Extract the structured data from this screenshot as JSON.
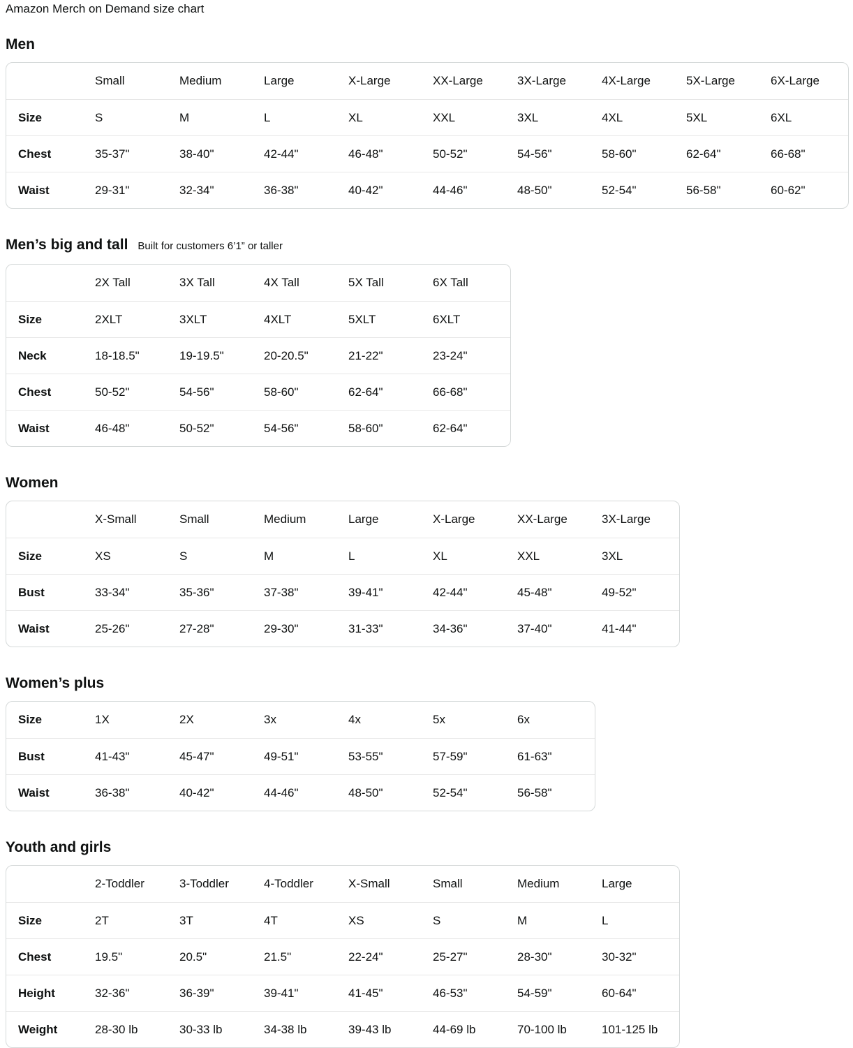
{
  "page_title": "Amazon Merch on Demand size chart",
  "colors": {
    "text": "#0f1111",
    "table_border": "#d5d9d9",
    "row_separator": "#e7e7e7",
    "background": "#ffffff"
  },
  "sections": [
    {
      "heading": "Men",
      "subtitle": "",
      "columns": [
        "Small",
        "Medium",
        "Large",
        "X-Large",
        "XX-Large",
        "3X-Large",
        "4X-Large",
        "5X-Large",
        "6X-Large"
      ],
      "rows": [
        {
          "label": "Size",
          "values": [
            "S",
            "M",
            "L",
            "XL",
            "XXL",
            "3XL",
            "4XL",
            "5XL",
            "6XL"
          ]
        },
        {
          "label": "Chest",
          "values": [
            "35-37\"",
            "38-40\"",
            "42-44\"",
            "46-48\"",
            "50-52\"",
            "54-56\"",
            "58-60\"",
            "62-64\"",
            "66-68\""
          ]
        },
        {
          "label": "Waist",
          "values": [
            "29-31\"",
            "32-34\"",
            "36-38\"",
            "40-42\"",
            "44-46\"",
            "48-50\"",
            "52-54\"",
            "56-58\"",
            "60-62\""
          ]
        }
      ]
    },
    {
      "heading": "Men’s big and tall",
      "subtitle": "Built for customers 6’1” or taller",
      "columns": [
        "2X Tall",
        "3X Tall",
        "4X Tall",
        "5X Tall",
        "6X Tall"
      ],
      "rows": [
        {
          "label": "Size",
          "values": [
            "2XLT",
            "3XLT",
            "4XLT",
            "5XLT",
            "6XLT"
          ]
        },
        {
          "label": "Neck",
          "values": [
            "18-18.5\"",
            "19-19.5\"",
            "20-20.5\"",
            "21-22\"",
            "23-24\""
          ]
        },
        {
          "label": "Chest",
          "values": [
            "50-52\"",
            "54-56\"",
            "58-60\"",
            "62-64\"",
            "66-68\""
          ]
        },
        {
          "label": "Waist",
          "values": [
            "46-48\"",
            "50-52\"",
            "54-56\"",
            "58-60\"",
            "62-64\""
          ]
        }
      ]
    },
    {
      "heading": "Women",
      "subtitle": "",
      "columns": [
        "X-Small",
        "Small",
        "Medium",
        "Large",
        "X-Large",
        "XX-Large",
        "3X-Large"
      ],
      "rows": [
        {
          "label": "Size",
          "values": [
            "XS",
            "S",
            "M",
            "L",
            "XL",
            "XXL",
            "3XL"
          ]
        },
        {
          "label": "Bust",
          "values": [
            "33-34\"",
            "35-36\"",
            "37-38\"",
            "39-41\"",
            "42-44\"",
            "45-48\"",
            "49-52\""
          ]
        },
        {
          "label": "Waist",
          "values": [
            "25-26\"",
            "27-28\"",
            "29-30\"",
            "31-33\"",
            "34-36\"",
            "37-40\"",
            "41-44\""
          ]
        }
      ]
    },
    {
      "heading": "Women’s plus",
      "subtitle": "",
      "columns": null,
      "rows": [
        {
          "label": "Size",
          "values": [
            "1X",
            "2X",
            "3x",
            "4x",
            "5x",
            "6x"
          ]
        },
        {
          "label": "Bust",
          "values": [
            "41-43\"",
            "45-47\"",
            "49-51\"",
            "53-55\"",
            "57-59\"",
            "61-63\""
          ]
        },
        {
          "label": "Waist",
          "values": [
            "36-38\"",
            "40-42\"",
            "44-46\"",
            "48-50\"",
            "52-54\"",
            "56-58\""
          ]
        }
      ]
    },
    {
      "heading": "Youth and girls",
      "subtitle": "",
      "columns": [
        "2-Toddler",
        "3-Toddler",
        "4-Toddler",
        "X-Small",
        "Small",
        "Medium",
        "Large"
      ],
      "rows": [
        {
          "label": "Size",
          "values": [
            "2T",
            "3T",
            "4T",
            "XS",
            "S",
            "M",
            "L"
          ]
        },
        {
          "label": "Chest",
          "values": [
            "19.5\"",
            "20.5\"",
            "21.5\"",
            "22-24\"",
            "25-27\"",
            "28-30\"",
            "30-32\""
          ]
        },
        {
          "label": "Height",
          "values": [
            "32-36\"",
            "36-39\"",
            "39-41\"",
            "41-45\"",
            "46-53\"",
            "54-59\"",
            "60-64\""
          ]
        },
        {
          "label": "Weight",
          "values": [
            "28-30 lb",
            "30-33 lb",
            "34-38 lb",
            "39-43 lb",
            "44-69 lb",
            "70-100 lb",
            "101-125 lb"
          ]
        }
      ]
    }
  ]
}
